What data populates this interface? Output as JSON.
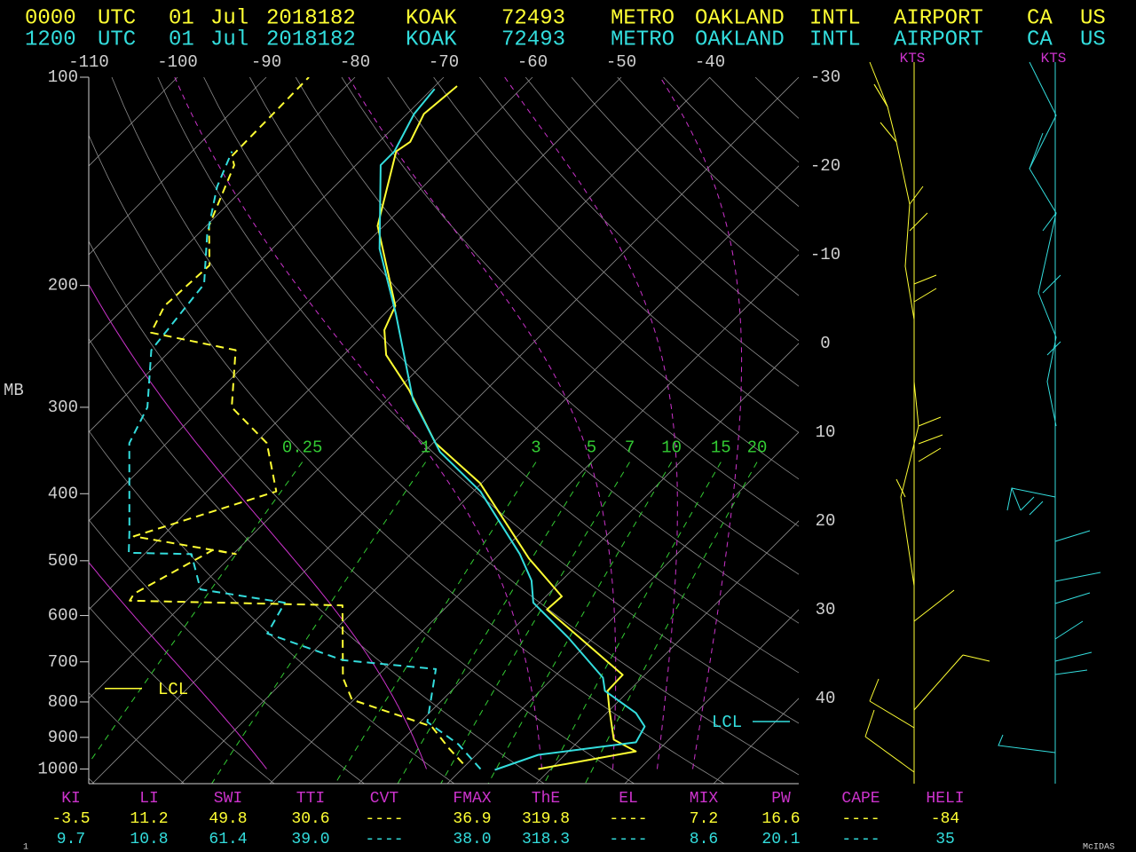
{
  "chart_data": {
    "type": "skew-t",
    "header": [
      {
        "color": "#ffff33",
        "fields": [
          "0000",
          "UTC",
          "01",
          "Jul",
          "2018182",
          "KOAK",
          "72493",
          "METRO",
          "OAKLAND",
          "INTL",
          "AIRPORT",
          "CA",
          "US"
        ]
      },
      {
        "color": "#33dddd",
        "fields": [
          "1200",
          "UTC",
          "01",
          "Jul",
          "2018182",
          "KOAK",
          "72493",
          "METRO",
          "OAKLAND",
          "INTL",
          "AIRPORT",
          "CA",
          "US"
        ]
      }
    ],
    "ylabel": "MB",
    "ylim": [
      100,
      1050
    ],
    "ylog": true,
    "yticks": [
      100,
      200,
      300,
      400,
      500,
      600,
      700,
      800,
      900,
      1000
    ],
    "xlim": [
      -110,
      -30
    ],
    "xticks": [
      -110,
      -100,
      -90,
      -80,
      -70,
      -60,
      -50,
      -40
    ],
    "isotherm_ticks": [
      -30,
      -20,
      -10,
      0,
      10,
      20,
      30,
      40
    ],
    "mixing_ratio": {
      "color": "#33cc33",
      "values": [
        0.25,
        1,
        3,
        5,
        7,
        10,
        15,
        20
      ]
    },
    "series": [
      {
        "color": "#ffff33",
        "dash": false,
        "pressure": [
          1000,
          943,
          907,
          818,
          771,
          731,
          588,
          563,
          496,
          386,
          338,
          283,
          252,
          232,
          214,
          164,
          128,
          124,
          113,
          103
        ],
        "values": [
          18.6,
          27.6,
          23.8,
          19.8,
          17.6,
          17.5,
          1.6,
          1.8,
          -6.2,
          -20.2,
          -29.7,
          -38.7,
          -45.2,
          -48.2,
          -49.7,
          -60.7,
          -67,
          -66.5,
          -68.1,
          -67.5
        ]
      },
      {
        "color": "#ffff33",
        "dash": true,
        "pressure": [
          982,
          935,
          868,
          794,
          738,
          580,
          571,
          558,
          482,
          489,
          461,
          397,
          338,
          300,
          248,
          234,
          214,
          187,
          164,
          134,
          130,
          100
        ],
        "values": [
          9.5,
          6.3,
          1.8,
          -10.2,
          -13.7,
          -21.9,
          -46.4,
          -46.7,
          -42.7,
          -39.7,
          -53.2,
          -42.2,
          -48.7,
          -56.7,
          -62.7,
          -74.2,
          -75.7,
          -75.2,
          -79.7,
          -83.7,
          -85,
          -85.2
        ]
      },
      {
        "color": "#33dddd",
        "dash": false,
        "pressure": [
          1003,
          954,
          915,
          868,
          830,
          771,
          738,
          647,
          575,
          534,
          489,
          397,
          348,
          292,
          220,
          177,
          134,
          128,
          113,
          104
        ],
        "values": [
          13.8,
          17,
          26.6,
          25.8,
          23.3,
          17.3,
          15.6,
          7.3,
          -0.7,
          -3.4,
          -7.7,
          -19.2,
          -28.2,
          -37.2,
          -48.7,
          -57.9,
          -67.2,
          -67.2,
          -69.2,
          -69.7
        ]
      },
      {
        "color": "#33dddd",
        "dash": true,
        "pressure": [
          1000,
          921,
          855,
          717,
          696,
          637,
          575,
          550,
          489,
          487,
          454,
          338,
          300,
          248,
          199,
          169,
          144,
          128
        ],
        "values": [
          12.1,
          6.8,
          0.8,
          -4.2,
          -15.7,
          -27.2,
          -28.7,
          -39.7,
          -44.7,
          -51.9,
          -54.2,
          -64.2,
          -66.2,
          -72.2,
          -73.7,
          -78.9,
          -83.2,
          -85.5
        ]
      }
    ],
    "lcl": [
      {
        "label": "LCL",
        "color": "#ffff33",
        "pressure": 765
      },
      {
        "label": "LCL",
        "color": "#33dddd",
        "pressure": 854
      }
    ],
    "wind_panels": [
      {
        "label": "KTS",
        "color": "#cc33cc"
      },
      {
        "label": "KTS",
        "color": "#cc33cc"
      }
    ],
    "indices": {
      "header_color": "#cc33cc",
      "headers": [
        "KI",
        "LI",
        "SWI",
        "TTI",
        "CVT",
        "FMAX",
        "ThE",
        "EL",
        "MIX",
        "PW",
        "CAPE",
        "HELI"
      ],
      "rows": [
        {
          "color": "#ffff33",
          "cells": [
            "-3.5",
            "11.2",
            "49.8",
            "30.6",
            "----",
            "36.9",
            "319.8",
            "----",
            "7.2",
            "16.6",
            "----",
            "-84"
          ]
        },
        {
          "color": "#33dddd",
          "cells": [
            "9.7",
            "10.8",
            "61.4",
            "39.0",
            "----",
            "38.0",
            "318.3",
            "----",
            "8.6",
            "20.1",
            "----",
            "35"
          ]
        }
      ]
    },
    "footer": {
      "left": "1",
      "right": "McIDAS"
    }
  }
}
